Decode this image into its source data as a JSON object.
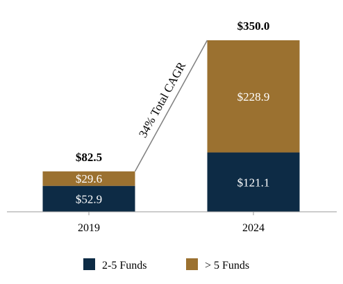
{
  "chart_data": {
    "type": "bar",
    "stacked": true,
    "categories": [
      "2019",
      "2024"
    ],
    "series": [
      {
        "name": "2-5 Funds",
        "values": [
          52.9,
          121.1
        ],
        "labels": [
          "$52.9",
          "$121.1"
        ],
        "color": "#0d2b45"
      },
      {
        "name": "> 5 Funds",
        "values": [
          29.6,
          228.9
        ],
        "labels": [
          "$29.6",
          "$228.9"
        ],
        "color": "#9b7130"
      }
    ],
    "totals": [
      82.5,
      350.0
    ],
    "total_labels": [
      "$82.5",
      "$350.0"
    ],
    "annotation": "34% Total CAGR",
    "title": "",
    "xlabel": "",
    "ylabel": "",
    "ylim": [
      0,
      350
    ],
    "grid": false,
    "legend_position": "bottom"
  }
}
